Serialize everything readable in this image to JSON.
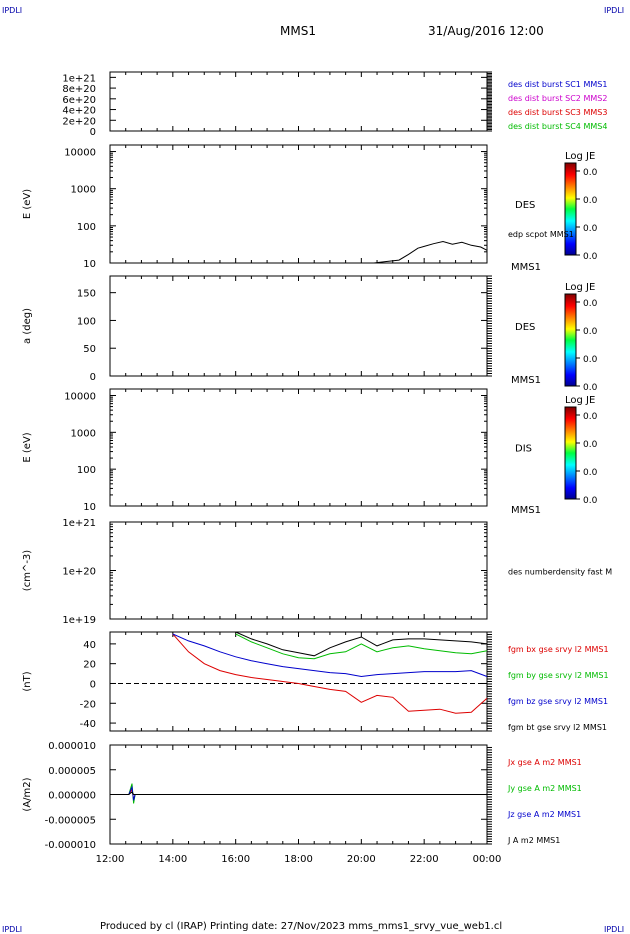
{
  "header": {
    "left_corner": "IPDLI",
    "right_corner": "IPDLI",
    "spacecraft": "MMS1",
    "datetime": "31/Aug/2016 12:00"
  },
  "footer": {
    "text": "Produced by cl (IRAP)   Printing date: 27/Nov/2023   mms_mms1_srvy_vue_web1.cl",
    "left_corner": "IPDLI",
    "right_corner": "IPDLI"
  },
  "colors": {
    "black": "#000000",
    "blue": "#0000cc",
    "magenta": "#cc00cc",
    "red": "#dd0000",
    "green": "#00bb00",
    "frame": "#000000"
  },
  "chart_data": [
    {
      "type": "line",
      "ylabel": "",
      "ylim": [
        0,
        1.1e+21
      ],
      "yticks": [
        "1e+21",
        "8e+20",
        "6e+20",
        "4e+20",
        "2e+20",
        "0"
      ],
      "zero_dashed": true,
      "legend_placement": "right",
      "series": [
        {
          "name": "des dist burst SC1 MMS1",
          "color": "#0000cc",
          "values": []
        },
        {
          "name": "des dist burst SC2 MMS2",
          "color": "#cc00cc",
          "values": []
        },
        {
          "name": "des dist burst SC3 MMS3",
          "color": "#dd0000",
          "values": []
        },
        {
          "name": "des dist burst SC4 MMS4",
          "color": "#00bb00",
          "values": []
        }
      ]
    },
    {
      "type": "heatmap",
      "ylabel": "E (eV)",
      "yscale": "log",
      "ylim": [
        10,
        15000
      ],
      "yticks": [
        "10000",
        "1000",
        "100",
        "10"
      ],
      "label": "DES",
      "bottom_label": "MMS1",
      "colorbar": {
        "title": "Log JE",
        "ticks": [
          "0.0",
          "0.0",
          "0.0",
          "0.0"
        ]
      },
      "overlay": {
        "name": "edp scpot MMS1",
        "x_hours": [
          20.4,
          20.8,
          21.2,
          21.5,
          21.8,
          22.0,
          22.3,
          22.6,
          22.9,
          23.2,
          23.5,
          23.8,
          24.0
        ],
        "values": [
          10,
          11,
          12,
          17,
          25,
          28,
          33,
          38,
          32,
          36,
          30,
          27,
          22
        ]
      }
    },
    {
      "type": "heatmap",
      "ylabel": "a (deg)",
      "ylim": [
        0,
        180
      ],
      "yticks": [
        "150",
        "100",
        "50",
        "0"
      ],
      "label": "DES",
      "bottom_label": "MMS1",
      "colorbar": {
        "title": "Log JE",
        "ticks": [
          "0.0",
          "0.0",
          "0.0",
          "0.0"
        ]
      }
    },
    {
      "type": "heatmap",
      "ylabel": "E (eV)",
      "yscale": "log",
      "ylim": [
        10,
        15000
      ],
      "yticks": [
        "10000",
        "1000",
        "100",
        "10"
      ],
      "label": "DIS",
      "bottom_label": "MMS1",
      "colorbar": {
        "title": "Log JE",
        "ticks": [
          "0.0",
          "0.0",
          "0.0",
          "0.0"
        ]
      }
    },
    {
      "type": "line",
      "ylabel": "(cm^-3)",
      "yscale": "log",
      "ylim": [
        1e+19,
        1e+21
      ],
      "yticks": [
        "1e+21",
        "1e+20",
        "1e+19"
      ],
      "series": [
        {
          "name": "des numberdensity fast M",
          "color": "#000000",
          "values": []
        }
      ]
    },
    {
      "type": "line",
      "ylabel": "(nT)",
      "ylim": [
        -48,
        52
      ],
      "yticks": [
        "40",
        "20",
        "0",
        "-20",
        "-40"
      ],
      "zero_dashed": true,
      "x_hours": [
        14.0,
        14.5,
        15.0,
        15.5,
        16.0,
        16.5,
        17.0,
        17.5,
        18.0,
        18.5,
        19.0,
        19.5,
        20.0,
        20.5,
        21.0,
        21.5,
        22.0,
        22.5,
        23.0,
        23.5,
        24.0
      ],
      "series": [
        {
          "name": "fgm bx gse srvy l2 MMS1",
          "color": "#dd0000",
          "values": [
            50,
            32,
            20,
            13,
            9,
            6,
            4,
            2,
            0,
            -3,
            -6,
            -8,
            -19,
            -12,
            -14,
            -28,
            -27,
            -26,
            -30,
            -29,
            -15
          ]
        },
        {
          "name": "fgm by gse srvy l2 MMS1",
          "color": "#00bb00",
          "values": [
            null,
            null,
            null,
            null,
            50,
            42,
            36,
            30,
            26,
            25,
            30,
            32,
            40,
            32,
            36,
            38,
            35,
            33,
            31,
            30,
            33
          ]
        },
        {
          "name": "fgm bz gse srvy l2 MMS1",
          "color": "#0000cc",
          "values": [
            50,
            43,
            38,
            32,
            27,
            23,
            20,
            17,
            15,
            13,
            11,
            10,
            7,
            9,
            10,
            11,
            12,
            12,
            12,
            13,
            7
          ]
        },
        {
          "name": "fgm bt gse srvy l2 MMS1",
          "color": "#000000",
          "values": [
            null,
            null,
            null,
            null,
            53,
            45,
            40,
            34,
            31,
            28,
            36,
            42,
            47,
            38,
            44,
            45,
            45,
            44,
            43,
            42,
            40
          ]
        }
      ]
    },
    {
      "type": "line",
      "ylabel": "(A/m2)",
      "ylim": [
        -1e-05,
        1e-05
      ],
      "yticks": [
        "0.000010",
        "0.000005",
        "0.000000",
        "-0.000005",
        "-0.000010"
      ],
      "xlabel": "",
      "xticks": [
        "12:00",
        "14:00",
        "16:00",
        "18:00",
        "20:00",
        "22:00",
        "00:00"
      ],
      "x_hours": [
        12.0,
        12.6,
        12.7,
        12.75,
        12.8,
        13.0,
        16.0,
        20.0,
        24.0
      ],
      "series": [
        {
          "name": "Jx gse A m2 MMS1",
          "color": "#dd0000",
          "values": [
            0,
            0,
            1e-06,
            -1e-06,
            0,
            0,
            0,
            0,
            0
          ]
        },
        {
          "name": "Jy gse A m2 MMS1",
          "color": "#00bb00",
          "values": [
            0,
            0,
            2.2e-06,
            -1.8e-06,
            0,
            0,
            0,
            0,
            0
          ]
        },
        {
          "name": "Jz gse A m2 MMS1",
          "color": "#0000cc",
          "values": [
            0,
            0,
            1.5e-06,
            -1.2e-06,
            0,
            0,
            0,
            0,
            0
          ]
        },
        {
          "name": "J A m2 MMS1",
          "color": "#000000",
          "values": [
            0,
            0,
            5e-07,
            0,
            0,
            0,
            0,
            0,
            0
          ]
        }
      ]
    }
  ]
}
